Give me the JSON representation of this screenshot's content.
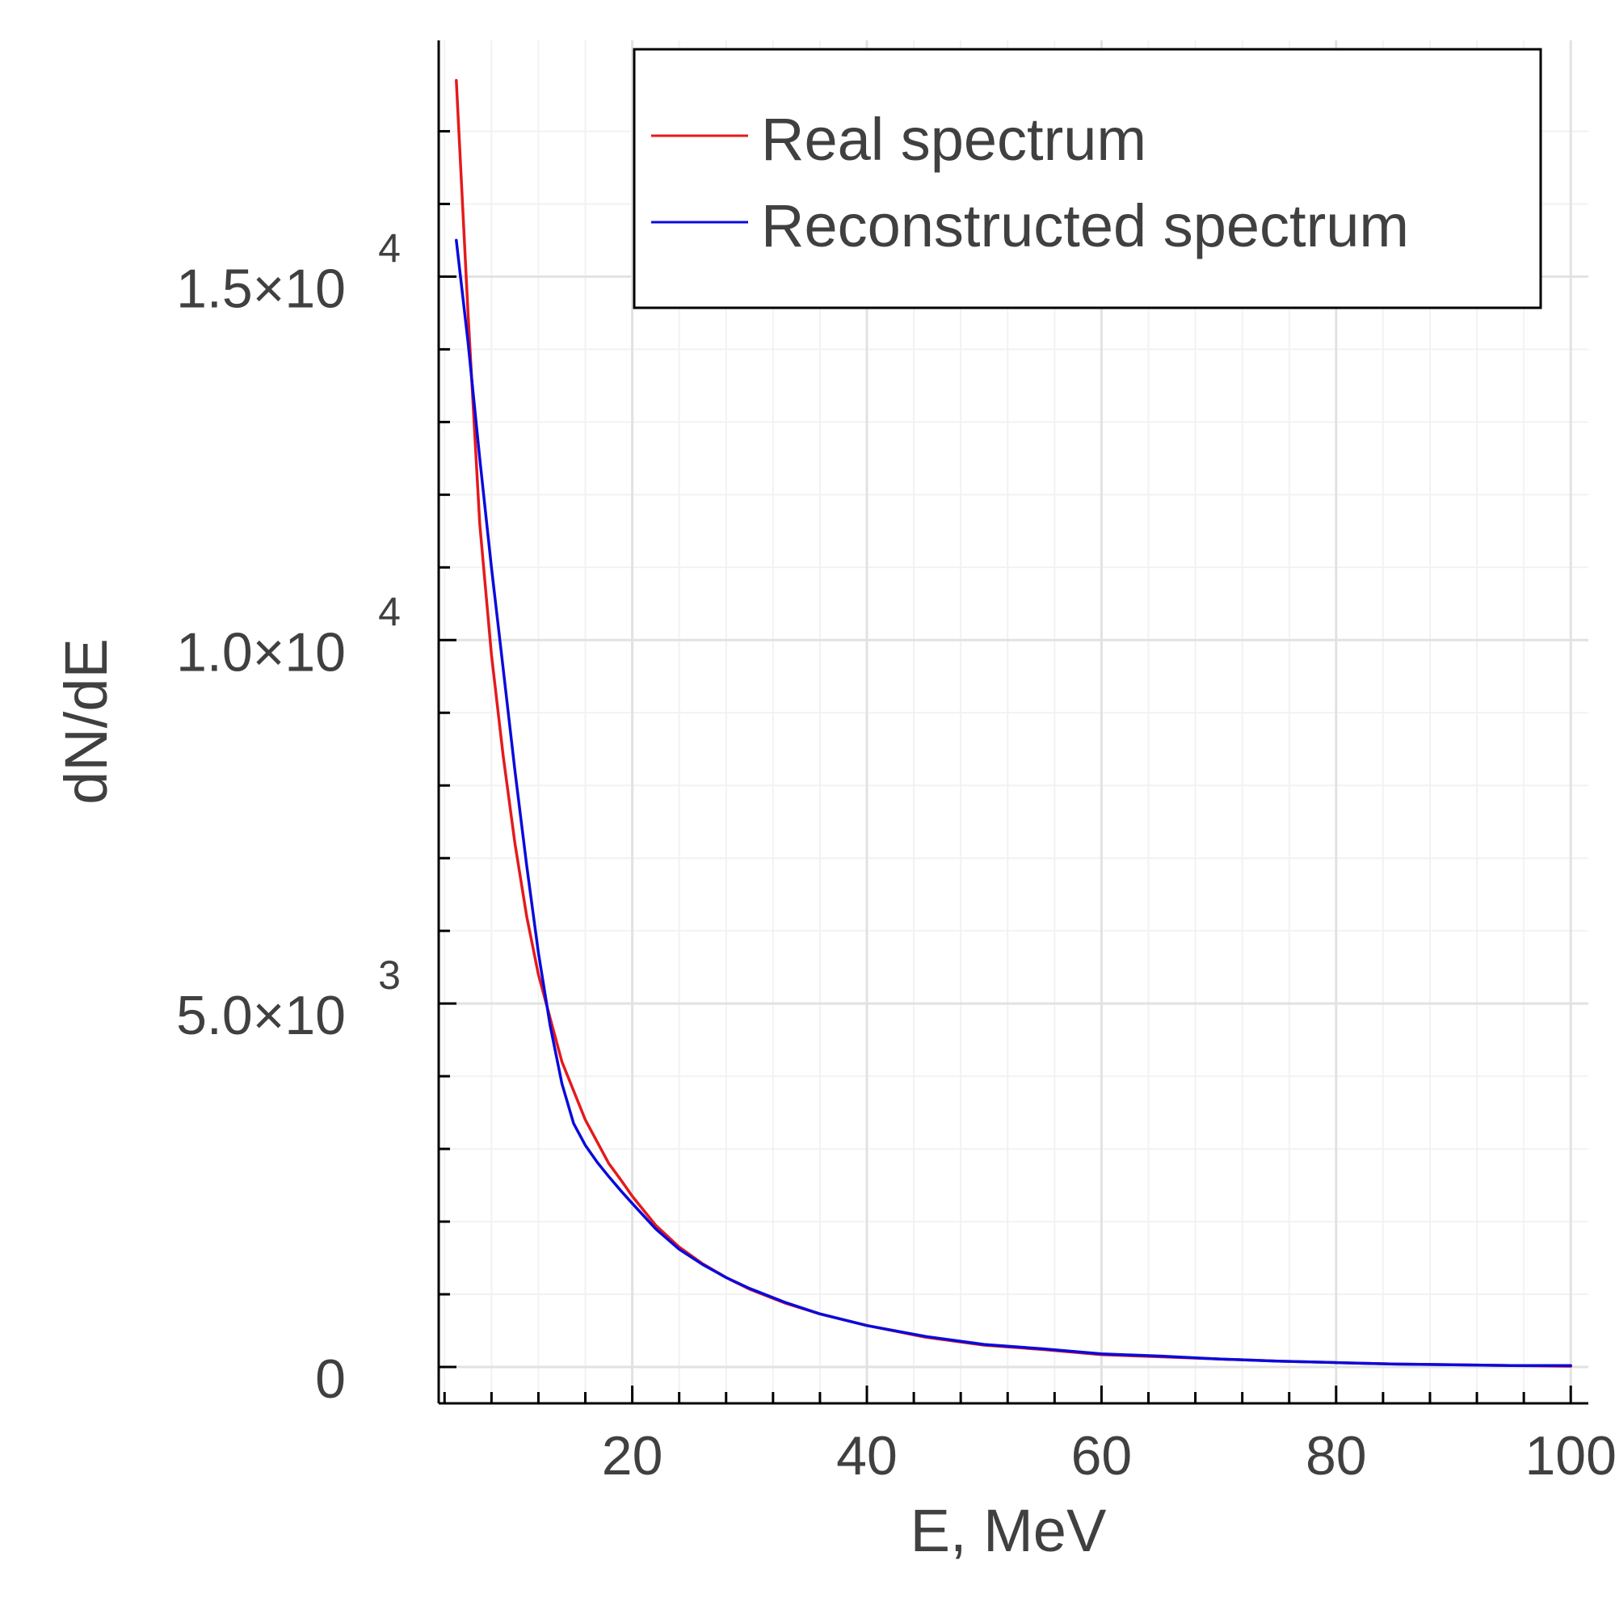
{
  "chart_data": {
    "type": "line",
    "title": "",
    "xlabel": "E, MeV",
    "ylabel": "dN/dE",
    "xlim": [
      3.5,
      101.5
    ],
    "ylim": [
      -500,
      18250
    ],
    "grid": true,
    "legend_position": "top-right",
    "x_ticks": [
      {
        "value": 20,
        "label": "20"
      },
      {
        "value": 40,
        "label": "40"
      },
      {
        "value": 60,
        "label": "60"
      },
      {
        "value": 80,
        "label": "80"
      },
      {
        "value": 100,
        "label": "100"
      }
    ],
    "y_ticks": [
      {
        "value": 0,
        "mantissa": "0",
        "exponent": ""
      },
      {
        "value": 5000,
        "mantissa": "5.0×10",
        "exponent": "3"
      },
      {
        "value": 10000,
        "mantissa": "1.0×10",
        "exponent": "4"
      },
      {
        "value": 15000,
        "mantissa": "1.5×10",
        "exponent": "4"
      }
    ],
    "series": [
      {
        "name": "Real spectrum",
        "color": "#e41a1c",
        "x": [
          5,
          6,
          7,
          8,
          9,
          10,
          11,
          12,
          13,
          14,
          15,
          16,
          17,
          18,
          19,
          20,
          22,
          24,
          26,
          28,
          30,
          33,
          36,
          40,
          45,
          50,
          55,
          60,
          65,
          70,
          75,
          80,
          85,
          90,
          95,
          100
        ],
        "y": [
          17700,
          14500,
          11600,
          9800,
          8400,
          7200,
          6200,
          5400,
          4800,
          4200,
          3800,
          3400,
          3100,
          2800,
          2580,
          2350,
          1950,
          1650,
          1420,
          1230,
          1070,
          880,
          730,
          570,
          410,
          300,
          240,
          170,
          140,
          110,
          80,
          60,
          40,
          30,
          20,
          10
        ]
      },
      {
        "name": "Reconstructed spectrum",
        "color": "#0a0adc",
        "x": [
          5,
          6,
          7,
          8,
          9,
          10,
          11,
          12,
          13,
          14,
          15,
          16,
          17,
          18,
          19,
          20,
          22,
          24,
          26,
          28,
          30,
          33,
          36,
          40,
          45,
          50,
          55,
          60,
          65,
          70,
          75,
          80,
          85,
          90,
          95,
          100
        ],
        "y": [
          15500,
          14100,
          12500,
          11000,
          9600,
          8200,
          6900,
          5700,
          4700,
          3900,
          3350,
          3050,
          2820,
          2620,
          2430,
          2250,
          1900,
          1620,
          1410,
          1230,
          1080,
          890,
          730,
          570,
          420,
          310,
          250,
          180,
          150,
          110,
          80,
          60,
          40,
          30,
          20,
          20
        ]
      }
    ]
  }
}
